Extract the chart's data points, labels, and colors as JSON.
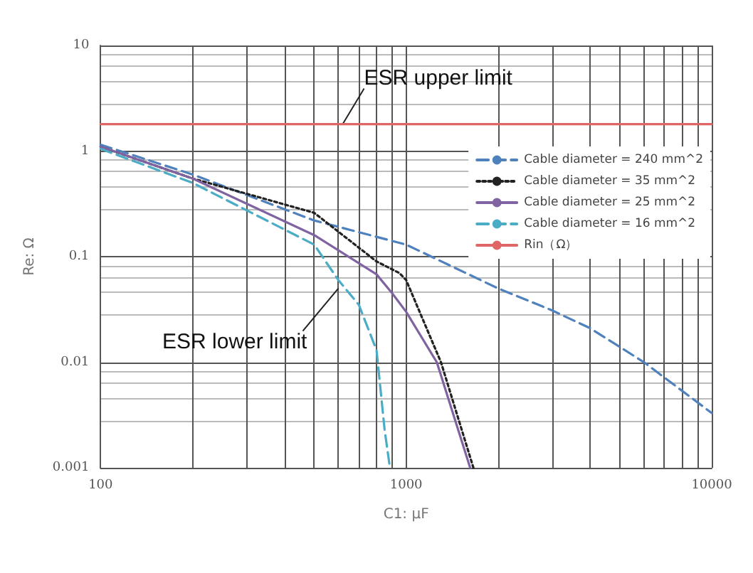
{
  "chart_data": {
    "type": "line",
    "xlabel": "C1: µF",
    "ylabel": "Re: Ω",
    "log": "xy",
    "grid": true,
    "legend": "top right",
    "marker": "none",
    "xlim": [
      100,
      10000
    ],
    "ylim": [
      0.001,
      10
    ],
    "xticks": [
      100,
      {
        "value": 200,
        "label": null
      },
      {
        "value": 300,
        "label": null
      },
      {
        "value": 400,
        "label": null
      },
      {
        "value": 500,
        "label": null
      },
      {
        "value": 600,
        "label": null
      },
      {
        "value": 700,
        "label": null
      },
      {
        "value": 800,
        "label": null
      },
      {
        "value": 900,
        "label": null
      },
      1000,
      {
        "value": 2000,
        "label": null
      },
      {
        "value": 3000,
        "label": null
      },
      {
        "value": 4000,
        "label": null
      },
      {
        "value": 5000,
        "label": null
      },
      {
        "value": 6000,
        "label": null
      },
      {
        "value": 7000,
        "label": null
      },
      {
        "value": 8000,
        "label": null
      },
      {
        "value": 9000,
        "label": null
      },
      10000
    ],
    "yticks": [
      0.001,
      0.01,
      0.1,
      1,
      10
    ],
    "series": [
      {
        "name": "Cable diameter = 240 mm^2",
        "color": "#4f81bd",
        "line_style": "dashed",
        "x": [
          100,
          200,
          500,
          1000,
          2000,
          3000,
          4000,
          6000,
          10000
        ],
        "values": [
          1.15,
          0.6,
          0.22,
          0.13,
          0.05,
          0.031,
          0.021,
          0.01,
          0.0033
        ]
      },
      {
        "name": "Cable diameter = 35 mm^2",
        "color": "#222222",
        "line_style": "dotted",
        "x": [
          100,
          200,
          500,
          800,
          950,
          1000,
          1300,
          1660
        ],
        "values": [
          1.1,
          0.55,
          0.26,
          0.09,
          0.07,
          0.06,
          0.01,
          0.001
        ]
      },
      {
        "name": "Cable diameter = 25 mm^2",
        "color": "#8064a2",
        "line_style": "solid",
        "x": [
          100,
          200,
          500,
          800,
          900,
          1000,
          1260,
          1620
        ],
        "values": [
          1.1,
          0.55,
          0.16,
          0.068,
          0.045,
          0.03,
          0.01,
          0.001
        ]
      },
      {
        "name": "Cable diameter = 16 mm^2",
        "color": "#4bacc6",
        "line_style": "dashed",
        "x": [
          100,
          200,
          500,
          600,
          700,
          800,
          850,
          885
        ],
        "values": [
          1.05,
          0.5,
          0.13,
          0.06,
          0.035,
          0.013,
          0.0023,
          0.001
        ]
      },
      {
        "name": "Rin（Ω）",
        "color": "#e06666",
        "line_style": "solid",
        "x": [
          100,
          10000
        ],
        "values": [
          1.8,
          1.8
        ]
      }
    ],
    "annotations": [
      {
        "text": "ESR upper limit",
        "x": 620,
        "y": 1.8
      },
      {
        "text": "ESR lower limit",
        "x": 600,
        "y": 0.05
      }
    ]
  }
}
